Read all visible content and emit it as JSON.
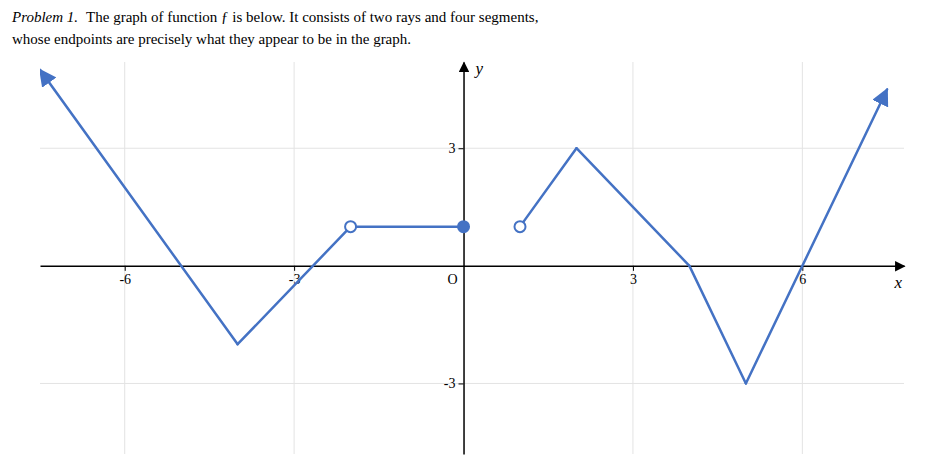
{
  "chart_data": {
    "type": "line",
    "title": "Problem 1.",
    "subtitle": [
      "The graph of function ƒ is below. It consists of two rays and four segments,",
      "whose endpoints are precisely what they appear to be in the graph."
    ],
    "x_label": "x",
    "y_label": "y",
    "annotations": [
      {
        "text": "O",
        "x": 0,
        "y": 0
      }
    ],
    "xlim": [
      -7.5,
      7.8
    ],
    "ylim": [
      -4.8,
      5.2
    ],
    "xticks": [
      -6,
      -3,
      3,
      6
    ],
    "yticks": [
      -3,
      3
    ],
    "grid": true,
    "color": "#4472c4",
    "series": [
      {
        "type": "line",
        "marker": "arrow-start",
        "x": [
          -7.5,
          -4
        ],
        "values": [
          5.0,
          -2
        ]
      },
      {
        "type": "line",
        "x": [
          -4,
          -2
        ],
        "values": [
          -2,
          1
        ]
      },
      {
        "type": "line",
        "x": [
          -2,
          0
        ],
        "values": [
          1,
          1
        ]
      },
      {
        "type": "line",
        "x": [
          1,
          2
        ],
        "values": [
          1,
          3
        ]
      },
      {
        "type": "line",
        "x": [
          2,
          4
        ],
        "values": [
          3,
          0
        ]
      },
      {
        "type": "line",
        "x": [
          4,
          5
        ],
        "values": [
          0,
          -3
        ]
      },
      {
        "type": "line",
        "marker": "arrow-end",
        "x": [
          5,
          7.5
        ],
        "values": [
          -3,
          4.5
        ]
      },
      {
        "type": "scatter",
        "marker": "open",
        "x": [
          -2,
          1
        ],
        "values": [
          1,
          1
        ]
      },
      {
        "type": "scatter",
        "marker": "filled",
        "x": [
          0
        ],
        "values": [
          1
        ]
      }
    ]
  }
}
